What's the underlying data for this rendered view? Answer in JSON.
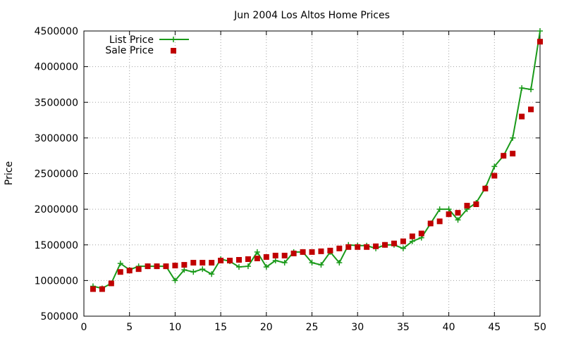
{
  "chart_data": {
    "type": "line",
    "title": "Jun 2004 Los Altos Home Prices",
    "xlabel": "",
    "ylabel": "Price",
    "xlim": [
      0,
      50
    ],
    "ylim": [
      500000,
      4500000
    ],
    "x_ticks": [
      "0",
      "5",
      "10",
      "15",
      "20",
      "25",
      "30",
      "35",
      "40",
      "45",
      "50"
    ],
    "y_ticks": [
      "500000",
      "1000000",
      "1500000",
      "2000000",
      "2500000",
      "3000000",
      "3500000",
      "4000000",
      "4500000"
    ],
    "grid": true,
    "legend_position": "top-left",
    "colors": {
      "list": "#1a9a1a",
      "sale": "#c00000"
    },
    "x": [
      1,
      2,
      3,
      4,
      5,
      6,
      7,
      8,
      9,
      10,
      11,
      12,
      13,
      14,
      15,
      16,
      17,
      18,
      19,
      20,
      21,
      22,
      23,
      24,
      25,
      26,
      27,
      28,
      29,
      30,
      31,
      32,
      33,
      34,
      35,
      36,
      37,
      38,
      39,
      40,
      41,
      42,
      43,
      44,
      45,
      46,
      47,
      48,
      49,
      50
    ],
    "series": [
      {
        "name": "List Price",
        "style": "linespoints",
        "values": [
          920000,
          890000,
          960000,
          1240000,
          1150000,
          1200000,
          1200000,
          1200000,
          1200000,
          1000000,
          1150000,
          1120000,
          1160000,
          1090000,
          1300000,
          1270000,
          1190000,
          1200000,
          1400000,
          1190000,
          1280000,
          1250000,
          1400000,
          1400000,
          1250000,
          1220000,
          1400000,
          1250000,
          1500000,
          1490000,
          1490000,
          1450000,
          1500000,
          1500000,
          1450000,
          1550000,
          1600000,
          1800000,
          2000000,
          2000000,
          1850000,
          2000000,
          2090000,
          2300000,
          2600000,
          2750000,
          3000000,
          3700000,
          3680000,
          4500000
        ]
      },
      {
        "name": "Sale Price",
        "style": "points",
        "values": [
          880000,
          880000,
          960000,
          1120000,
          1140000,
          1160000,
          1200000,
          1200000,
          1200000,
          1210000,
          1220000,
          1250000,
          1250000,
          1250000,
          1280000,
          1280000,
          1290000,
          1300000,
          1310000,
          1330000,
          1350000,
          1350000,
          1380000,
          1400000,
          1400000,
          1410000,
          1420000,
          1450000,
          1470000,
          1470000,
          1470000,
          1480000,
          1500000,
          1520000,
          1550000,
          1620000,
          1660000,
          1800000,
          1830000,
          1930000,
          1950000,
          2050000,
          2070000,
          2290000,
          2470000,
          2750000,
          2780000,
          3300000,
          3400000,
          4350000
        ]
      }
    ]
  }
}
